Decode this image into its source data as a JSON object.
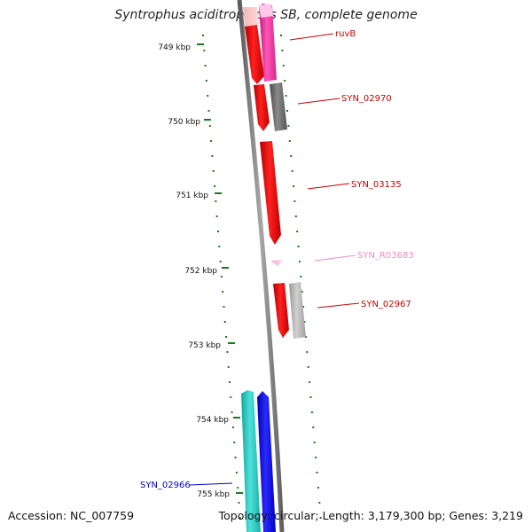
{
  "title": "Syntrophus aciditrophicus SB, complete genome",
  "footer": {
    "accession": "Accession: NC_007759",
    "summary": "Topology: circular; Length: 3,179,300 bp; Genes: 3,219"
  },
  "colors": {
    "backbone": "#808080",
    "tick": "#1a7a1a",
    "red_gene": "#ff0000",
    "pink_gene": "#ff3fa6",
    "gray_gene": "#707070",
    "cyan_gene": "#20c4bc",
    "blue_gene": "#0000ff"
  },
  "ticks": [
    {
      "label": "749 kbp"
    },
    {
      "label": "750 kbp"
    },
    {
      "label": "751 kbp"
    },
    {
      "label": "752 kbp"
    },
    {
      "label": "753 kbp"
    },
    {
      "label": "754 kbp"
    },
    {
      "label": "755 kbp"
    }
  ],
  "gene_labels": [
    {
      "name": "ruvB",
      "color": "#cc0000"
    },
    {
      "name": "SYN_02970",
      "color": "#cc0000"
    },
    {
      "name": "SYN_03135",
      "color": "#cc0000"
    },
    {
      "name": "SYN_R03683",
      "color": "#f08cbf"
    },
    {
      "name": "SYN_02967",
      "color": "#cc0000"
    },
    {
      "name": "SYN_02966",
      "color": "#0000cc"
    }
  ]
}
